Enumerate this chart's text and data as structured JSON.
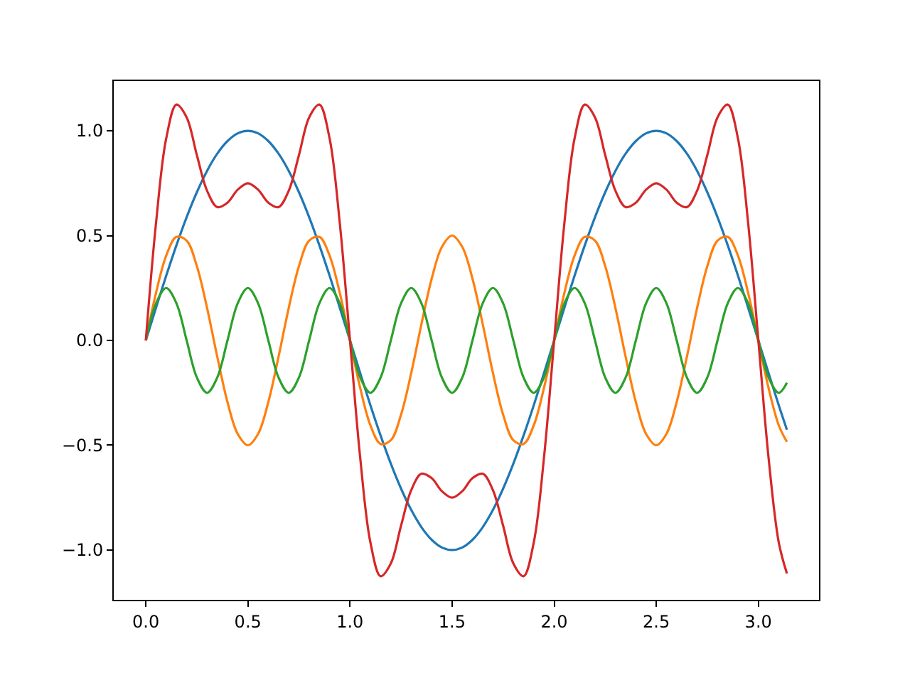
{
  "chart_data": {
    "type": "line",
    "x": [
      0,
      0.05,
      0.1,
      0.15,
      0.2,
      0.25,
      0.3,
      0.35,
      0.4,
      0.45,
      0.5,
      0.55,
      0.6,
      0.65,
      0.7,
      0.75,
      0.8,
      0.85,
      0.9,
      0.95,
      1,
      1.05,
      1.1,
      1.15,
      1.2,
      1.25,
      1.3,
      1.35,
      1.4,
      1.45,
      1.5,
      1.55,
      1.6,
      1.65,
      1.7,
      1.75,
      1.8,
      1.85,
      1.9,
      1.95,
      2,
      2.05,
      2.1,
      2.15,
      2.2,
      2.25,
      2.3,
      2.35,
      2.4,
      2.45,
      2.5,
      2.55,
      2.6,
      2.65,
      2.7,
      2.75,
      2.8,
      2.85,
      2.9,
      2.95,
      3,
      3.05,
      3.1,
      3.14
    ],
    "series": [
      {
        "color": "#1f77b4",
        "values": [
          0,
          0.156,
          0.309,
          0.454,
          0.588,
          0.707,
          0.809,
          0.891,
          0.951,
          0.988,
          1,
          0.988,
          0.951,
          0.891,
          0.809,
          0.707,
          0.588,
          0.454,
          0.309,
          0.156,
          0,
          -0.156,
          -0.309,
          -0.454,
          -0.588,
          -0.707,
          -0.809,
          -0.891,
          -0.951,
          -0.988,
          -1,
          -0.988,
          -0.951,
          -0.891,
          -0.809,
          -0.707,
          -0.588,
          -0.454,
          -0.309,
          -0.156,
          0,
          0.156,
          0.309,
          0.454,
          0.588,
          0.707,
          0.809,
          0.891,
          0.951,
          0.988,
          1,
          0.988,
          0.951,
          0.891,
          0.809,
          0.707,
          0.588,
          0.454,
          0.309,
          0.156,
          0,
          -0.156,
          -0.309,
          -0.426
        ]
      },
      {
        "color": "#ff7f0e",
        "values": [
          0,
          0.227,
          0.405,
          0.494,
          0.476,
          0.354,
          0.155,
          -0.078,
          -0.294,
          -0.446,
          -0.5,
          -0.446,
          -0.294,
          -0.078,
          0.155,
          0.354,
          0.476,
          0.494,
          0.405,
          0.227,
          0,
          -0.227,
          -0.405,
          -0.494,
          -0.476,
          -0.354,
          -0.155,
          0.078,
          0.294,
          0.446,
          0.5,
          0.446,
          0.294,
          0.078,
          -0.155,
          -0.354,
          -0.476,
          -0.494,
          -0.405,
          -0.227,
          0,
          0.227,
          0.405,
          0.494,
          0.476,
          0.354,
          0.155,
          -0.078,
          -0.294,
          -0.446,
          -0.5,
          -0.446,
          -0.294,
          -0.078,
          0.155,
          0.354,
          0.476,
          0.494,
          0.405,
          0.227,
          0,
          -0.227,
          -0.405,
          -0.484
        ]
      },
      {
        "color": "#2ca02c",
        "values": [
          0,
          0.177,
          0.25,
          0.177,
          0,
          -0.177,
          -0.25,
          -0.177,
          0,
          0.177,
          0.25,
          0.177,
          0,
          -0.177,
          -0.25,
          -0.177,
          0,
          0.177,
          0.25,
          0.177,
          0,
          -0.177,
          -0.25,
          -0.177,
          0,
          0.177,
          0.25,
          0.177,
          0,
          -0.177,
          -0.25,
          -0.177,
          0,
          0.177,
          0.25,
          0.177,
          0,
          -0.177,
          -0.25,
          -0.177,
          0,
          0.177,
          0.25,
          0.177,
          0,
          -0.177,
          -0.25,
          -0.177,
          0,
          0.177,
          0.25,
          0.177,
          0,
          -0.177,
          -0.25,
          -0.177,
          0,
          0.177,
          0.25,
          0.177,
          0,
          -0.177,
          -0.25,
          -0.202
        ]
      },
      {
        "color": "#d62728",
        "values": [
          0,
          0.56,
          0.964,
          1.125,
          1.064,
          0.884,
          0.714,
          0.636,
          0.657,
          0.719,
          0.75,
          0.719,
          0.657,
          0.636,
          0.714,
          0.884,
          1.064,
          1.125,
          0.964,
          0.56,
          0,
          -0.56,
          -0.964,
          -1.125,
          -1.064,
          -0.884,
          -0.714,
          -0.636,
          -0.657,
          -0.719,
          -0.75,
          -0.719,
          -0.657,
          -0.636,
          -0.714,
          -0.884,
          -1.064,
          -1.125,
          -0.964,
          -0.56,
          0,
          0.56,
          0.964,
          1.125,
          1.064,
          0.884,
          0.714,
          0.636,
          0.657,
          0.719,
          0.75,
          0.719,
          0.657,
          0.636,
          0.714,
          0.884,
          1.064,
          1.125,
          0.964,
          0.56,
          0,
          -0.56,
          -0.964,
          -1.112
        ]
      }
    ],
    "xlim": [
      -0.157,
      3.297
    ],
    "xticks": [
      {
        "value": 0,
        "label": "0.0"
      },
      {
        "value": 0.5,
        "label": "0.5"
      },
      {
        "value": 1,
        "label": "1.0"
      },
      {
        "value": 1.5,
        "label": "1.5"
      },
      {
        "value": 2,
        "label": "2.0"
      },
      {
        "value": 2.5,
        "label": "2.5"
      },
      {
        "value": 3,
        "label": "3.0"
      }
    ],
    "ylim": [
      -1.2375,
      1.2375
    ],
    "yticks": [
      {
        "value": -1,
        "label": "−1.0"
      },
      {
        "value": -0.5,
        "label": "−0.5"
      },
      {
        "value": 0,
        "label": "0.0"
      },
      {
        "value": 0.5,
        "label": "0.5"
      },
      {
        "value": 1,
        "label": "1.0"
      }
    ]
  }
}
